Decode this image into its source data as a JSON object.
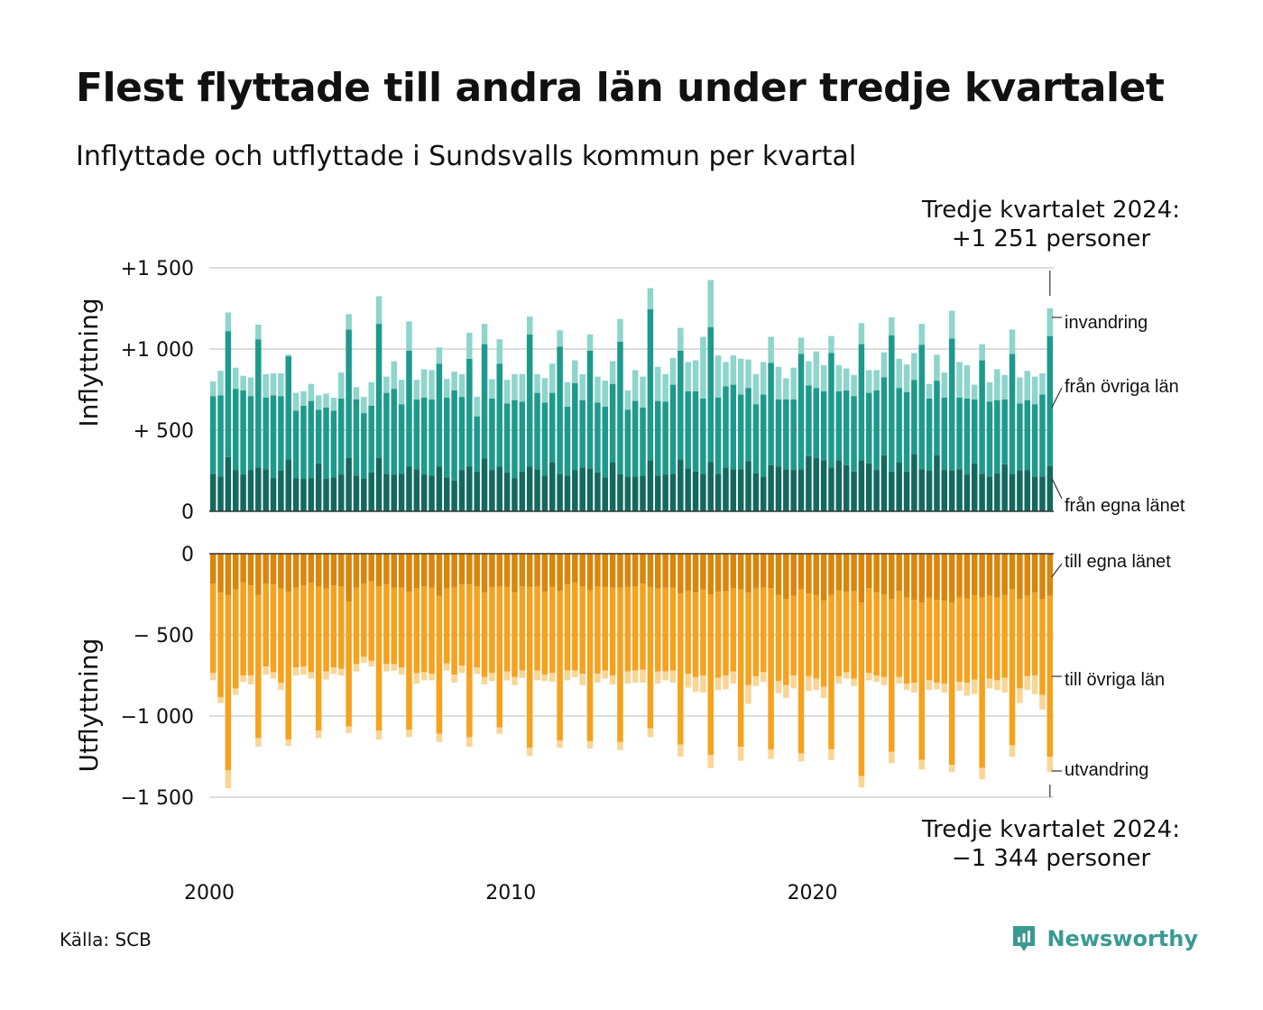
{
  "title": "Flest flyttade till andra län under tredje kvartalet",
  "subtitle": "Inflyttade och utflyttade i Sundsvalls kommun per kvartal",
  "source": "Källa: SCB",
  "brand": "Newsworthy",
  "colors": {
    "in_egna": "#14695e",
    "in_ovriga": "#1e9a8c",
    "in_invandring": "#8ed5cc",
    "out_egna": "#d9860c",
    "out_ovriga": "#f5a21f",
    "out_utvandring": "#f9d596",
    "grid": "#dddddd",
    "zero": "#333333",
    "brand": "#3a9a92"
  },
  "chart_data": {
    "type": "bar",
    "stacked": true,
    "start_year": 2000,
    "x_tick_labels": [
      "2000",
      "2010",
      "2020"
    ],
    "top_panel": {
      "ylabel": "Inflyttning",
      "ylim": [
        0,
        1500
      ],
      "y_tick_labels": [
        "0",
        "+  500",
        "+1 000",
        "+1 500"
      ],
      "y_tick_values": [
        0,
        500,
        1000,
        1500
      ],
      "annotation": [
        "Tredje kvartalet 2024:",
        "+1 251 personer"
      ],
      "series": [
        {
          "name": "från egna länet",
          "color_key": "in_egna",
          "values": [
            230,
            215,
            335,
            255,
            225,
            255,
            270,
            260,
            205,
            250,
            320,
            205,
            200,
            205,
            295,
            200,
            210,
            225,
            330,
            220,
            200,
            240,
            330,
            230,
            225,
            230,
            275,
            260,
            225,
            220,
            275,
            210,
            190,
            255,
            275,
            245,
            325,
            255,
            275,
            240,
            205,
            245,
            275,
            260,
            220,
            300,
            230,
            220,
            255,
            270,
            265,
            240,
            210,
            300,
            230,
            215,
            215,
            220,
            315,
            220,
            225,
            230,
            320,
            265,
            245,
            230,
            305,
            230,
            270,
            260,
            260,
            310,
            235,
            215,
            285,
            275,
            260,
            255,
            260,
            340,
            330,
            315,
            270,
            315,
            285,
            245,
            315,
            295,
            255,
            345,
            245,
            300,
            245,
            350,
            260,
            250,
            345,
            255,
            250,
            260,
            225,
            295,
            230,
            215,
            235,
            290,
            230,
            250,
            255,
            215,
            215,
            280
          ]
        },
        {
          "name": "från övriga län",
          "color_key": "in_ovriga",
          "values": [
            480,
            500,
            775,
            500,
            520,
            455,
            790,
            440,
            510,
            460,
            635,
            415,
            450,
            475,
            330,
            440,
            410,
            470,
            790,
            470,
            405,
            410,
            825,
            500,
            530,
            430,
            715,
            430,
            475,
            470,
            635,
            490,
            555,
            450,
            665,
            340,
            705,
            440,
            635,
            425,
            480,
            430,
            815,
            470,
            450,
            430,
            785,
            425,
            535,
            415,
            725,
            430,
            435,
            485,
            815,
            410,
            465,
            420,
            930,
            460,
            450,
            550,
            670,
            475,
            495,
            465,
            830,
            470,
            500,
            520,
            460,
            450,
            425,
            505,
            630,
            415,
            430,
            435,
            710,
            435,
            430,
            425,
            705,
            425,
            460,
            465,
            715,
            435,
            490,
            480,
            840,
            460,
            490,
            460,
            765,
            445,
            460,
            445,
            815,
            440,
            470,
            395,
            700,
            460,
            450,
            400,
            740,
            415,
            430,
            445,
            505,
            800
          ]
        },
        {
          "name": "invandring",
          "color_key": "in_invandring",
          "values": [
            90,
            150,
            115,
            130,
            90,
            115,
            90,
            145,
            135,
            140,
            10,
            110,
            90,
            105,
            90,
            85,
            80,
            160,
            95,
            75,
            100,
            145,
            170,
            100,
            170,
            150,
            180,
            120,
            175,
            180,
            100,
            115,
            115,
            140,
            160,
            120,
            125,
            120,
            150,
            145,
            160,
            170,
            110,
            115,
            150,
            180,
            100,
            150,
            140,
            160,
            100,
            160,
            160,
            140,
            140,
            120,
            190,
            190,
            130,
            210,
            170,
            165,
            140,
            180,
            190,
            380,
            290,
            260,
            150,
            180,
            220,
            175,
            185,
            200,
            160,
            200,
            130,
            195,
            100,
            150,
            225,
            160,
            105,
            160,
            135,
            130,
            130,
            140,
            125,
            155,
            110,
            180,
            170,
            165,
            130,
            90,
            160,
            155,
            170,
            220,
            205,
            90,
            100,
            120,
            190,
            150,
            150,
            160,
            180,
            170,
            130,
            171
          ]
        }
      ]
    },
    "bottom_panel": {
      "ylabel": "Utflyttning",
      "ylim": [
        -1500,
        0
      ],
      "y_tick_labels": [
        "0",
        "−  500",
        "−1 000",
        "−1 500"
      ],
      "y_tick_values": [
        0,
        -500,
        -1000,
        -1500
      ],
      "annotation": [
        "Tredje kvartalet 2024:",
        "−1 344 personer"
      ],
      "series": [
        {
          "name": "till egna länet",
          "color_key": "out_egna",
          "values": [
            -185,
            -240,
            -255,
            -220,
            -175,
            -195,
            -255,
            -185,
            -190,
            -215,
            -235,
            -210,
            -195,
            -180,
            -200,
            -215,
            -195,
            -200,
            -295,
            -210,
            -185,
            -170,
            -200,
            -190,
            -210,
            -210,
            -235,
            -215,
            -200,
            -210,
            -260,
            -215,
            -205,
            -190,
            -190,
            -200,
            -240,
            -205,
            -200,
            -205,
            -240,
            -200,
            -205,
            -200,
            -235,
            -205,
            -230,
            -190,
            -180,
            -200,
            -225,
            -200,
            -205,
            -210,
            -210,
            -205,
            -200,
            -185,
            -205,
            -215,
            -210,
            -210,
            -245,
            -230,
            -240,
            -220,
            -250,
            -235,
            -230,
            -215,
            -220,
            -240,
            -215,
            -210,
            -215,
            -255,
            -280,
            -260,
            -220,
            -245,
            -255,
            -290,
            -255,
            -225,
            -235,
            -230,
            -300,
            -215,
            -240,
            -250,
            -280,
            -230,
            -270,
            -285,
            -300,
            -270,
            -285,
            -290,
            -300,
            -270,
            -275,
            -255,
            -270,
            -260,
            -270,
            -255,
            -220,
            -280,
            -260,
            -240,
            -280,
            -260
          ]
        },
        {
          "name": "till övriga län",
          "color_key": "out_ovriga",
          "values": [
            -550,
            -645,
            -1080,
            -610,
            -575,
            -555,
            -880,
            -510,
            -540,
            -580,
            -910,
            -490,
            -500,
            -550,
            -890,
            -510,
            -505,
            -510,
            -770,
            -470,
            -450,
            -490,
            -890,
            -490,
            -470,
            -490,
            -850,
            -520,
            -530,
            -530,
            -850,
            -460,
            -540,
            -500,
            -940,
            -500,
            -520,
            -530,
            -870,
            -520,
            -520,
            -520,
            -990,
            -520,
            -510,
            -530,
            -920,
            -530,
            -540,
            -540,
            -930,
            -540,
            -515,
            -540,
            -950,
            -520,
            -520,
            -530,
            -870,
            -510,
            -515,
            -510,
            -930,
            -510,
            -520,
            -530,
            -990,
            -530,
            -520,
            -510,
            -970,
            -570,
            -540,
            -520,
            -990,
            -530,
            -530,
            -490,
            -1010,
            -510,
            -515,
            -530,
            -950,
            -530,
            -495,
            -540,
            -1070,
            -520,
            -510,
            -510,
            -940,
            -530,
            -530,
            -510,
            -970,
            -510,
            -510,
            -510,
            -1000,
            -520,
            -520,
            -520,
            -1050,
            -510,
            -510,
            -510,
            -960,
            -550,
            -495,
            -510,
            -590,
            -990
          ]
        },
        {
          "name": "utvandring",
          "color_key": "out_utvandring",
          "values": [
            -45,
            -35,
            -110,
            -40,
            -40,
            -55,
            -55,
            -50,
            -40,
            -45,
            -40,
            -50,
            -50,
            -40,
            -45,
            -50,
            -40,
            -40,
            -40,
            -45,
            -35,
            -35,
            -55,
            -45,
            -40,
            -45,
            -45,
            -65,
            -50,
            -40,
            -50,
            -45,
            -50,
            -45,
            -60,
            -40,
            -45,
            -50,
            -40,
            -55,
            -50,
            -45,
            -50,
            -60,
            -40,
            -55,
            -45,
            -60,
            -40,
            -70,
            -45,
            -55,
            -50,
            -55,
            -50,
            -75,
            -75,
            -80,
            -55,
            -75,
            -55,
            -75,
            -75,
            -85,
            -90,
            -105,
            -80,
            -75,
            -85,
            -75,
            -85,
            -115,
            -60,
            -60,
            -60,
            -75,
            -80,
            -80,
            -50,
            -90,
            -70,
            -70,
            -65,
            -45,
            -40,
            -45,
            -70,
            -45,
            -40,
            -50,
            -70,
            -40,
            -40,
            -60,
            -60,
            -60,
            -40,
            -55,
            -45,
            -55,
            -80,
            -90,
            -70,
            -60,
            -60,
            -90,
            -70,
            -90,
            -85,
            -115,
            -90,
            -94
          ]
        }
      ]
    },
    "right_labels": {
      "top": [
        "invandring",
        "från övriga län",
        "från egna länet"
      ],
      "bottom": [
        "till egna länet",
        "till övriga län",
        "utvandring"
      ]
    }
  }
}
